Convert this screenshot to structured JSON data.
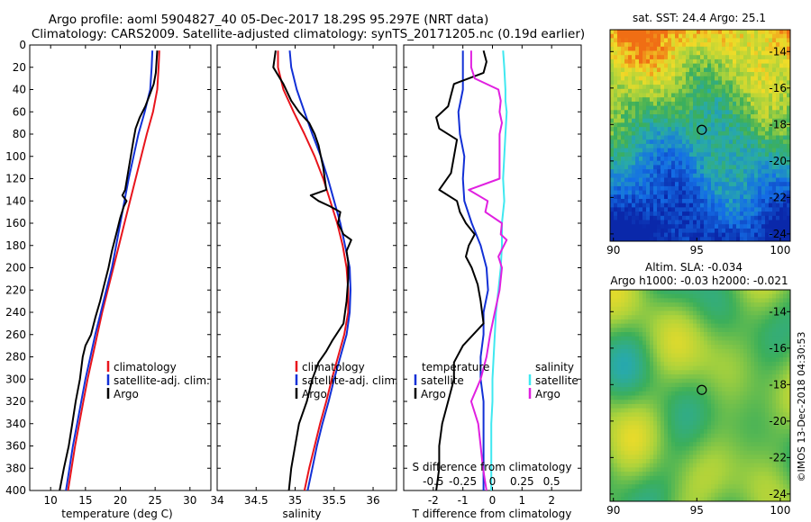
{
  "header": {
    "title_line1": "Argo profile: aoml 5904827_40 05-Dec-2017 18.29S 95.297E (NRT data)",
    "title_line2": "Climatology: CARS2009. Satellite-adjusted climatology: synTS_20171205.nc (0.19d earlier)"
  },
  "colors": {
    "climatology": "#e8141c",
    "satellite": "#1230d6",
    "argo": "#000000",
    "sat_salinity": "#3fe8f0",
    "argo_salinity": "#e020e0"
  },
  "chart_data": [
    {
      "type": "line",
      "id": "temperature",
      "xlabel": "temperature (deg C)",
      "ylabel": "",
      "xlim": [
        7,
        33
      ],
      "ylim": [
        0,
        400
      ],
      "y_inverted": true,
      "x_ticks": [
        10,
        15,
        20,
        25,
        30
      ],
      "y_ticks": [
        0,
        20,
        40,
        60,
        80,
        100,
        120,
        140,
        160,
        180,
        200,
        220,
        240,
        260,
        280,
        300,
        320,
        340,
        360,
        380,
        400
      ],
      "legend": [
        "climatology",
        "satellite-adj. clim.",
        "Argo"
      ],
      "series": [
        {
          "name": "climatology",
          "color": "#e8141c",
          "depth": [
            5,
            20,
            40,
            60,
            80,
            100,
            120,
            140,
            160,
            180,
            200,
            220,
            240,
            260,
            280,
            300,
            320,
            340,
            360,
            380,
            400
          ],
          "values": [
            25.6,
            25.5,
            25.3,
            24.7,
            23.8,
            23.0,
            22.2,
            21.4,
            20.6,
            19.8,
            19.0,
            18.2,
            17.4,
            16.7,
            16.0,
            15.3,
            14.7,
            14.1,
            13.5,
            13.0,
            12.5
          ]
        },
        {
          "name": "satellite-adj. clim.",
          "color": "#1230d6",
          "depth": [
            5,
            20,
            40,
            60,
            80,
            100,
            120,
            140,
            160,
            180,
            200,
            220,
            240,
            260,
            280,
            300,
            320,
            340,
            360,
            380,
            400
          ],
          "values": [
            24.6,
            24.5,
            24.3,
            23.5,
            22.6,
            21.9,
            21.2,
            20.6,
            20.0,
            19.4,
            18.8,
            18.0,
            17.2,
            16.4,
            15.7,
            15.0,
            14.4,
            13.8,
            13.2,
            12.7,
            12.2
          ]
        },
        {
          "name": "Argo",
          "color": "#000000",
          "depth": [
            5,
            15,
            25,
            35,
            45,
            55,
            65,
            75,
            85,
            100,
            115,
            130,
            135,
            140,
            145,
            155,
            170,
            185,
            200,
            215,
            230,
            245,
            260,
            270,
            280,
            300,
            320,
            340,
            360,
            380,
            400
          ],
          "values": [
            25.3,
            25.2,
            25.1,
            24.8,
            24.2,
            23.6,
            22.8,
            22.2,
            21.9,
            21.5,
            21.1,
            20.7,
            20.3,
            20.9,
            20.5,
            20.0,
            19.4,
            18.8,
            18.3,
            17.7,
            17.1,
            16.4,
            15.8,
            15.0,
            14.6,
            14.2,
            13.6,
            13.1,
            12.6,
            11.9,
            11.3
          ]
        }
      ]
    },
    {
      "type": "line",
      "id": "salinity",
      "xlabel": "salinity",
      "ylabel": "",
      "xlim": [
        34,
        36.3
      ],
      "ylim": [
        0,
        400
      ],
      "y_inverted": true,
      "x_ticks": [
        34,
        34.5,
        35,
        35.5,
        36
      ],
      "legend": [
        "climatology",
        "satellite-adj. clim.",
        "Argo"
      ],
      "series": [
        {
          "name": "climatology",
          "color": "#e8141c",
          "depth": [
            5,
            20,
            40,
            60,
            80,
            100,
            120,
            140,
            160,
            180,
            200,
            220,
            240,
            260,
            280,
            300,
            320,
            340,
            360,
            380,
            400
          ],
          "values": [
            34.78,
            34.78,
            34.85,
            34.98,
            35.12,
            35.25,
            35.36,
            35.45,
            35.54,
            35.61,
            35.66,
            35.68,
            35.68,
            35.63,
            35.55,
            35.47,
            35.4,
            35.32,
            35.25,
            35.18,
            35.12
          ]
        },
        {
          "name": "satellite-adj. clim.",
          "color": "#1230d6",
          "depth": [
            5,
            20,
            40,
            60,
            80,
            100,
            120,
            140,
            160,
            180,
            200,
            220,
            240,
            260,
            280,
            300,
            320,
            340,
            360,
            380,
            400
          ],
          "values": [
            34.93,
            34.95,
            35.02,
            35.12,
            35.22,
            35.33,
            35.42,
            35.5,
            35.58,
            35.64,
            35.7,
            35.71,
            35.7,
            35.66,
            35.58,
            35.5,
            35.43,
            35.35,
            35.28,
            35.22,
            35.16
          ]
        },
        {
          "name": "Argo",
          "color": "#000000",
          "depth": [
            5,
            20,
            35,
            50,
            60,
            70,
            80,
            90,
            100,
            110,
            120,
            130,
            135,
            140,
            145,
            150,
            160,
            170,
            175,
            185,
            195,
            210,
            230,
            250,
            265,
            275,
            285,
            300,
            320,
            340,
            360,
            380,
            400
          ],
          "values": [
            34.75,
            34.72,
            34.85,
            34.95,
            35.05,
            35.18,
            35.25,
            35.3,
            35.33,
            35.36,
            35.38,
            35.4,
            35.2,
            35.3,
            35.45,
            35.58,
            35.55,
            35.62,
            35.72,
            35.66,
            35.68,
            35.68,
            35.66,
            35.62,
            35.48,
            35.4,
            35.3,
            35.22,
            35.15,
            35.05,
            35.0,
            34.95,
            34.92
          ]
        }
      ]
    },
    {
      "type": "line",
      "id": "difference",
      "xlabel": "T difference from climatology",
      "xlabel_top": "S difference from climatology",
      "xlim": [
        -3,
        3
      ],
      "ylim": [
        0,
        400
      ],
      "y_inverted": true,
      "x_ticks": [
        -2,
        -1,
        0,
        1,
        2
      ],
      "x_ticks_top": [
        "-0.5",
        "-0.25",
        "0",
        "0.25",
        "0.5"
      ],
      "legend_groups": {
        "temperature_label": "temperature",
        "salinity_label": "salinity",
        "temperature": [
          "satellite",
          "Argo"
        ],
        "salinity": [
          "satellite",
          "Argo"
        ]
      },
      "series": [
        {
          "name": "temperature satellite",
          "color": "#1230d6",
          "depth": [
            5,
            20,
            40,
            60,
            80,
            100,
            120,
            140,
            160,
            180,
            200,
            220,
            240,
            260,
            280,
            300,
            320,
            340,
            360,
            380,
            400
          ],
          "values": [
            -1.0,
            -1.0,
            -1.0,
            -1.15,
            -1.1,
            -0.95,
            -1.0,
            -0.95,
            -0.7,
            -0.4,
            -0.2,
            -0.15,
            -0.3,
            -0.3,
            -0.4,
            -0.4,
            -0.3,
            -0.3,
            -0.3,
            -0.3,
            -0.3
          ]
        },
        {
          "name": "temperature Argo",
          "color": "#000000",
          "depth": [
            5,
            15,
            25,
            35,
            45,
            55,
            65,
            75,
            85,
            100,
            115,
            130,
            140,
            150,
            160,
            170,
            180,
            190,
            200,
            215,
            230,
            250,
            270,
            285,
            300,
            320,
            340,
            360,
            380,
            400
          ],
          "values": [
            -0.3,
            -0.2,
            -0.3,
            -1.3,
            -1.4,
            -1.5,
            -1.9,
            -1.8,
            -1.2,
            -1.3,
            -1.4,
            -1.8,
            -1.2,
            -1.1,
            -0.9,
            -0.6,
            -0.8,
            -0.9,
            -0.7,
            -0.5,
            -0.4,
            -0.3,
            -1.0,
            -1.3,
            -1.3,
            -1.5,
            -1.7,
            -1.8,
            -1.8,
            -1.9
          ]
        },
        {
          "name": "salinity satellite",
          "color": "#3fe8f0",
          "depth": [
            5,
            20,
            40,
            50,
            60,
            80,
            100,
            120,
            140,
            160,
            180,
            200,
            220,
            240,
            260,
            280,
            300,
            320,
            340,
            360,
            380,
            400
          ],
          "values": [
            0.09,
            0.1,
            0.11,
            0.11,
            0.12,
            0.11,
            0.1,
            0.09,
            0.1,
            0.08,
            0.08,
            0.07,
            0.05,
            0.03,
            0.02,
            0.01,
            0.0,
            0.0,
            -0.01,
            -0.01,
            -0.01,
            -0.01
          ]
        },
        {
          "name": "salinity Argo",
          "color": "#e020e0",
          "depth": [
            5,
            20,
            30,
            40,
            50,
            60,
            70,
            80,
            100,
            120,
            130,
            140,
            150,
            160,
            170,
            175,
            190,
            200,
            220,
            240,
            260,
            280,
            300,
            320,
            340,
            360,
            380,
            400
          ],
          "values": [
            -0.18,
            -0.18,
            -0.15,
            0.05,
            0.07,
            0.06,
            0.08,
            0.06,
            0.06,
            0.06,
            -0.2,
            -0.04,
            -0.06,
            0.08,
            0.07,
            0.12,
            0.05,
            0.08,
            0.06,
            0.02,
            -0.02,
            -0.05,
            -0.1,
            -0.18,
            -0.12,
            -0.1,
            -0.08,
            -0.05
          ]
        }
      ]
    },
    {
      "type": "heatmap",
      "id": "sst_map",
      "title": "sat. SST: 24.4 Argo: 25.1",
      "x_ticks": [
        90,
        95,
        100
      ],
      "y_ticks": [
        -14,
        -16,
        -18,
        -20,
        -22,
        -24
      ],
      "xlim": [
        89.8,
        100.6
      ],
      "ylim": [
        -24.4,
        -12.8
      ],
      "marker": {
        "lon": 95.297,
        "lat": -18.29
      }
    },
    {
      "type": "heatmap",
      "id": "sla_map",
      "title_line1": "Altim. SLA: -0.034",
      "title_line2": "Argo h1000: -0.03 h2000: -0.021",
      "x_ticks": [
        90,
        95,
        100
      ],
      "y_ticks": [
        -14,
        -16,
        -18,
        -20,
        -22,
        -24
      ],
      "xlim": [
        89.8,
        100.6
      ],
      "ylim": [
        -24.4,
        -12.8
      ],
      "marker": {
        "lon": 95.297,
        "lat": -18.29
      }
    }
  ],
  "footer": {
    "stamp": "©IMOS 13-Dec-2018 04:30:53"
  }
}
